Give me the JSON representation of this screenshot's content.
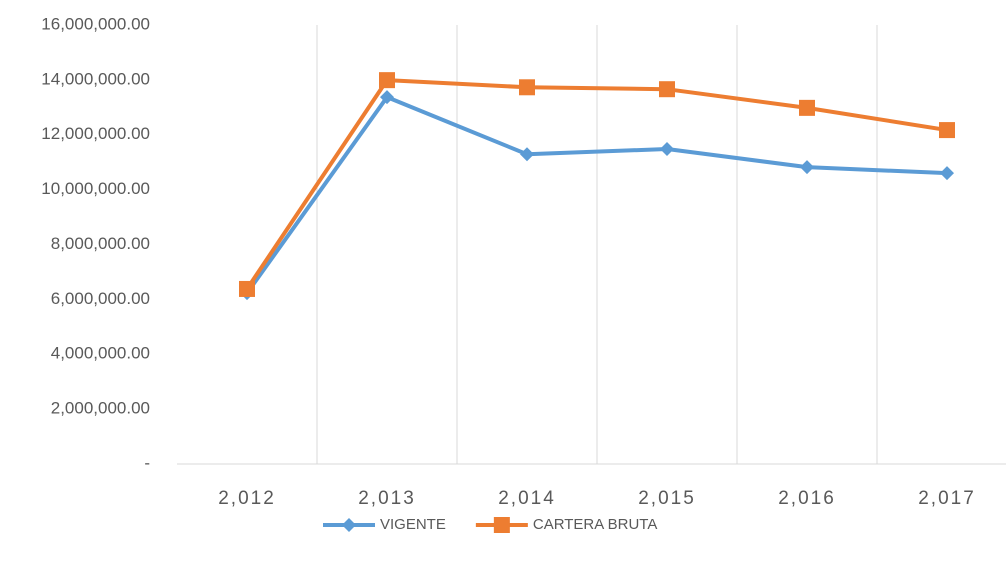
{
  "chart_data": {
    "type": "line",
    "categories": [
      "2,012",
      "2,013",
      "2,014",
      "2,015",
      "2,016",
      "2,017"
    ],
    "series": [
      {
        "name": "VIGENTE",
        "color": "#5b9bd5",
        "marker": "diamond",
        "values": [
          6230000,
          13370000,
          11290000,
          11480000,
          10820000,
          10600000
        ]
      },
      {
        "name": "CARTERA BRUTA",
        "color": "#ed7d31",
        "marker": "square",
        "values": [
          6380000,
          13990000,
          13730000,
          13660000,
          12980000,
          12170000
        ]
      }
    ],
    "ylim": [
      0,
      16000000
    ],
    "yticks": [
      {
        "value": 0,
        "label": "-"
      },
      {
        "value": 2000000,
        "label": "2,000,000.00"
      },
      {
        "value": 4000000,
        "label": "4,000,000.00"
      },
      {
        "value": 6000000,
        "label": "6,000,000.00"
      },
      {
        "value": 8000000,
        "label": "8,000,000.00"
      },
      {
        "value": 10000000,
        "label": "10,000,000.00"
      },
      {
        "value": 12000000,
        "label": "12,000,000.00"
      },
      {
        "value": 14000000,
        "label": "14,000,000.00"
      },
      {
        "value": 16000000,
        "label": "16,000,000.00"
      }
    ],
    "grid": "vertical",
    "legend": "bottom"
  }
}
